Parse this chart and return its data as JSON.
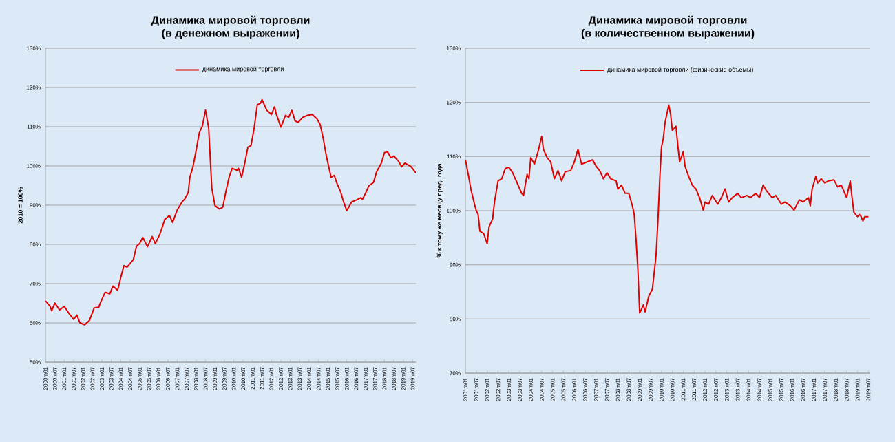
{
  "chart_data": [
    {
      "type": "line",
      "title": "Динамика мировой торговли",
      "subtitle": "(в денежном выражении)",
      "ylabel": "2010 = 100%",
      "grid": "y",
      "legend": "top",
      "marker": "none",
      "line_style": "solid",
      "xlim": [
        "2000-01",
        "2019-09"
      ],
      "ylim": [
        50,
        130
      ],
      "yticks": [
        {
          "value": 50,
          "label": "50%"
        },
        {
          "value": 60,
          "label": "60%"
        },
        {
          "value": 70,
          "label": "70%"
        },
        {
          "value": 80,
          "label": "80%"
        },
        {
          "value": 90,
          "label": "90%"
        },
        {
          "value": 100,
          "label": "100%"
        },
        {
          "value": 110,
          "label": "110%"
        },
        {
          "value": 120,
          "label": "120%"
        },
        {
          "value": 130,
          "label": "130%"
        }
      ],
      "xticks": [
        {
          "value": "2000-01",
          "label": "2000m01"
        },
        {
          "value": "2000-07",
          "label": "2000m07"
        },
        {
          "value": "2001-01",
          "label": "2001m01"
        },
        {
          "value": "2001-07",
          "label": "2001m07"
        },
        {
          "value": "2002-01",
          "label": "2002m01"
        },
        {
          "value": "2002-07",
          "label": "2002m07"
        },
        {
          "value": "2003-01",
          "label": "2003m01"
        },
        {
          "value": "2003-07",
          "label": "2003m07"
        },
        {
          "value": "2004-01",
          "label": "2004m01"
        },
        {
          "value": "2004-07",
          "label": "2004m07"
        },
        {
          "value": "2005-01",
          "label": "2005m01"
        },
        {
          "value": "2005-07",
          "label": "2005m07"
        },
        {
          "value": "2006-01",
          "label": "2006m01"
        },
        {
          "value": "2006-07",
          "label": "2006m07"
        },
        {
          "value": "2007-01",
          "label": "2007m01"
        },
        {
          "value": "2007-07",
          "label": "2007m07"
        },
        {
          "value": "2008-01",
          "label": "2008m01"
        },
        {
          "value": "2008-07",
          "label": "2008m07"
        },
        {
          "value": "2009-01",
          "label": "2009m01"
        },
        {
          "value": "2009-07",
          "label": "2009m07"
        },
        {
          "value": "2010-01",
          "label": "2010m01"
        },
        {
          "value": "2010-07",
          "label": "2010m07"
        },
        {
          "value": "2011-01",
          "label": "2011m01"
        },
        {
          "value": "2011-07",
          "label": "2011m07"
        },
        {
          "value": "2012-01",
          "label": "2012m01"
        },
        {
          "value": "2012-07",
          "label": "2012m07"
        },
        {
          "value": "2013-01",
          "label": "2013m01"
        },
        {
          "value": "2013-07",
          "label": "2013m07"
        },
        {
          "value": "2014-01",
          "label": "2014m01"
        },
        {
          "value": "2014-07",
          "label": "2014m07"
        },
        {
          "value": "2015-01",
          "label": "2015m01"
        },
        {
          "value": "2015-07",
          "label": "2015m07"
        },
        {
          "value": "2016-01",
          "label": "2016m01"
        },
        {
          "value": "2016-07",
          "label": "2016m07"
        },
        {
          "value": "2017-01",
          "label": "2017m01"
        },
        {
          "value": "2017-07",
          "label": "2017m07"
        },
        {
          "value": "2018-01",
          "label": "2018m01"
        },
        {
          "value": "2018-07",
          "label": "2018m07"
        },
        {
          "value": "2019-01",
          "label": "2019m01"
        },
        {
          "value": "2019-07",
          "label": "2019m07"
        }
      ],
      "series": [
        {
          "name": "динамика мировой торговли",
          "color": "#e00000",
          "x": [
            "2000-01",
            "2000-04",
            "2000-05",
            "2000-07",
            "2000-10",
            "2001-01",
            "2001-04",
            "2001-07",
            "2001-09",
            "2001-11",
            "2002-02",
            "2002-05",
            "2002-08",
            "2002-11",
            "2002-12",
            "2003-03",
            "2003-06",
            "2003-08",
            "2003-11",
            "2004-01",
            "2004-03",
            "2004-05",
            "2004-09",
            "2004-11",
            "2005-01",
            "2005-03",
            "2005-06",
            "2005-09",
            "2005-11",
            "2006-02",
            "2006-05",
            "2006-08",
            "2006-10",
            "2007-01",
            "2007-04",
            "2007-06",
            "2007-08",
            "2007-09",
            "2007-11",
            "2008-01",
            "2008-03",
            "2008-05",
            "2008-07",
            "2008-09",
            "2008-11",
            "2009-01",
            "2009-04",
            "2009-06",
            "2009-08",
            "2009-10",
            "2009-12",
            "2010-03",
            "2010-04",
            "2010-06",
            "2010-08",
            "2010-10",
            "2010-12",
            "2011-02",
            "2011-04",
            "2011-06",
            "2011-07",
            "2011-10",
            "2012-01",
            "2012-03",
            "2012-04",
            "2012-07",
            "2012-10",
            "2012-12",
            "2013-02",
            "2013-04",
            "2013-06",
            "2013-09",
            "2013-12",
            "2014-03",
            "2014-06",
            "2014-08",
            "2014-10",
            "2014-12",
            "2015-02",
            "2015-03",
            "2015-05",
            "2015-07",
            "2015-09",
            "2015-11",
            "2016-01",
            "2016-04",
            "2016-07",
            "2016-10",
            "2016-11",
            "2017-01",
            "2017-03",
            "2017-06",
            "2017-08",
            "2017-11",
            "2018-01",
            "2018-03",
            "2018-05",
            "2018-07",
            "2018-10",
            "2018-12",
            "2019-02",
            "2019-04",
            "2019-06",
            "2019-09"
          ],
          "values": [
            65.6,
            64.2,
            63.1,
            65.1,
            63.3,
            64.2,
            62.4,
            60.9,
            62,
            60,
            59.5,
            60.6,
            63.8,
            64,
            65.1,
            67.8,
            67.4,
            69.4,
            68.3,
            71.6,
            74.6,
            74.2,
            76.1,
            79.5,
            80.2,
            81.8,
            79.4,
            82,
            80.2,
            82.7,
            86.3,
            87.4,
            85.6,
            88.8,
            90.8,
            91.7,
            93.3,
            97.1,
            99.8,
            103.9,
            108.4,
            110.2,
            114.2,
            109.7,
            94.4,
            89.9,
            89,
            89.5,
            93.5,
            97.1,
            99.4,
            98.9,
            99.4,
            97.1,
            100.7,
            104.8,
            105.2,
            109.7,
            115.6,
            116,
            116.9,
            114.2,
            113.1,
            115.1,
            113.3,
            109.9,
            112.9,
            112.4,
            114.2,
            111.5,
            111.1,
            112.4,
            112.9,
            113.1,
            112,
            110.6,
            107,
            102.5,
            98.9,
            97.1,
            97.6,
            95.3,
            93.5,
            90.8,
            88.6,
            90.8,
            91.3,
            91.9,
            91.5,
            93.1,
            94.9,
            95.8,
            98.5,
            100.7,
            103.4,
            103.6,
            102.1,
            102.5,
            101.2,
            99.8,
            100.7,
            100.3,
            99.8,
            98.2
          ]
        }
      ]
    },
    {
      "type": "line",
      "title": "Динамика мировой торговли",
      "subtitle": "(в количественном выражении)",
      "ylabel": "% к тому же месяцу пред. года",
      "grid": "y",
      "legend": "top",
      "marker": "none",
      "line_style": "solid",
      "xlim": [
        "2001-01",
        "2019-08"
      ],
      "ylim": [
        70,
        130
      ],
      "yticks": [
        {
          "value": 70,
          "label": "70%"
        },
        {
          "value": 80,
          "label": "80%"
        },
        {
          "value": 90,
          "label": "90%"
        },
        {
          "value": 100,
          "label": "100%"
        },
        {
          "value": 110,
          "label": "110%"
        },
        {
          "value": 120,
          "label": "120%"
        },
        {
          "value": 130,
          "label": "130%"
        }
      ],
      "xticks": [
        {
          "value": "2001-01",
          "label": "2001m01"
        },
        {
          "value": "2001-07",
          "label": "2001m07"
        },
        {
          "value": "2002-01",
          "label": "2002m01"
        },
        {
          "value": "2002-07",
          "label": "2002m07"
        },
        {
          "value": "2003-01",
          "label": "2003m01"
        },
        {
          "value": "2003-07",
          "label": "2003m07"
        },
        {
          "value": "2004-01",
          "label": "2004m01"
        },
        {
          "value": "2004-07",
          "label": "2004m07"
        },
        {
          "value": "2005-01",
          "label": "2005m01"
        },
        {
          "value": "2005-07",
          "label": "2005m07"
        },
        {
          "value": "2006-01",
          "label": "2006m01"
        },
        {
          "value": "2006-07",
          "label": "2006m07"
        },
        {
          "value": "2007-01",
          "label": "2007m01"
        },
        {
          "value": "2007-07",
          "label": "2007m07"
        },
        {
          "value": "2008-01",
          "label": "2008m01"
        },
        {
          "value": "2008-07",
          "label": "2008m07"
        },
        {
          "value": "2009-01",
          "label": "2009m01"
        },
        {
          "value": "2009-07",
          "label": "2009m07"
        },
        {
          "value": "2010-01",
          "label": "2010m01"
        },
        {
          "value": "2010-07",
          "label": "2010m07"
        },
        {
          "value": "2011-01",
          "label": "2011m01"
        },
        {
          "value": "2011-07",
          "label": "2011m07"
        },
        {
          "value": "2012-01",
          "label": "2012m01"
        },
        {
          "value": "2012-07",
          "label": "2012m07"
        },
        {
          "value": "2013-01",
          "label": "2013m01"
        },
        {
          "value": "2013-07",
          "label": "2013m07"
        },
        {
          "value": "2014-01",
          "label": "2014m01"
        },
        {
          "value": "2014-07",
          "label": "2014m07"
        },
        {
          "value": "2015-01",
          "label": "2015m01"
        },
        {
          "value": "2015-07",
          "label": "2015m07"
        },
        {
          "value": "2016-01",
          "label": "2016m01"
        },
        {
          "value": "2016-07",
          "label": "2016m07"
        },
        {
          "value": "2017-01",
          "label": "2017m01"
        },
        {
          "value": "2017-07",
          "label": "2017m07"
        },
        {
          "value": "2018-01",
          "label": "2018m01"
        },
        {
          "value": "2018-07",
          "label": "2018m07"
        },
        {
          "value": "2019-01",
          "label": "2019m01"
        },
        {
          "value": "2019-07",
          "label": "2019m07"
        }
      ],
      "series": [
        {
          "name": "динамика мировой торговли (физические объемы)",
          "color": "#e00000",
          "x": [
            "2001-01",
            "2001-03",
            "2001-04",
            "2001-06",
            "2001-07",
            "2001-08",
            "2001-09",
            "2001-11",
            "2002-01",
            "2002-02",
            "2002-04",
            "2002-05",
            "2002-07",
            "2002-09",
            "2002-11",
            "2003-01",
            "2003-03",
            "2003-05",
            "2003-08",
            "2003-09",
            "2003-11",
            "2003-12",
            "2004-01",
            "2004-03",
            "2004-05",
            "2004-07",
            "2004-08",
            "2004-10",
            "2004-12",
            "2005-02",
            "2005-04",
            "2005-06",
            "2005-08",
            "2005-11",
            "2006-01",
            "2006-03",
            "2006-05",
            "2006-08",
            "2006-11",
            "2007-01",
            "2007-03",
            "2007-05",
            "2007-07",
            "2007-09",
            "2007-12",
            "2008-01",
            "2008-03",
            "2008-05",
            "2008-07",
            "2008-09",
            "2008-10",
            "2008-11",
            "2008-12",
            "2009-01",
            "2009-03",
            "2009-04",
            "2009-06",
            "2009-08",
            "2009-10",
            "2009-11",
            "2009-12",
            "2010-01",
            "2010-02",
            "2010-03",
            "2010-05",
            "2010-06",
            "2010-07",
            "2010-09",
            "2010-10",
            "2010-11",
            "2011-01",
            "2011-02",
            "2011-04",
            "2011-06",
            "2011-08",
            "2011-10",
            "2011-12",
            "2012-01",
            "2012-03",
            "2012-05",
            "2012-08",
            "2012-10",
            "2012-12",
            "2013-02",
            "2013-04",
            "2013-07",
            "2013-09",
            "2013-12",
            "2014-02",
            "2014-05",
            "2014-07",
            "2014-09",
            "2014-11",
            "2015-02",
            "2015-04",
            "2015-07",
            "2015-09",
            "2015-12",
            "2016-02",
            "2016-05",
            "2016-07",
            "2016-10",
            "2016-11",
            "2016-12",
            "2017-02",
            "2017-03",
            "2017-05",
            "2017-07",
            "2017-09",
            "2017-12",
            "2018-02",
            "2018-04",
            "2018-05",
            "2018-07",
            "2018-08",
            "2018-09",
            "2018-10",
            "2018-11",
            "2019-01",
            "2019-02",
            "2019-03",
            "2019-04",
            "2019-05",
            "2019-07"
          ],
          "values": [
            109.4,
            105.9,
            104,
            101.2,
            100,
            99.3,
            96.2,
            95.8,
            93.9,
            97,
            98.5,
            101.6,
            105.5,
            105.9,
            107.8,
            108,
            107,
            105.5,
            103.2,
            102.8,
            106.7,
            105.9,
            109.8,
            108.6,
            110.9,
            113.7,
            111.3,
            109.8,
            109,
            105.9,
            107.4,
            105.5,
            107.2,
            107.4,
            109,
            111.3,
            108.6,
            109,
            109.4,
            108.2,
            107.4,
            105.9,
            107,
            105.9,
            105.5,
            104,
            104.7,
            103.2,
            103.2,
            100.9,
            99.3,
            94.7,
            89.2,
            81.1,
            82.6,
            81.3,
            84.2,
            85.5,
            91.6,
            97.7,
            105.5,
            111.7,
            113.3,
            116.3,
            119.5,
            117.9,
            114.8,
            115.6,
            112.1,
            109,
            110.9,
            108.2,
            106.3,
            104.7,
            104,
            102.4,
            100.1,
            101.6,
            101.2,
            102.8,
            101.2,
            102.4,
            104,
            101.6,
            102.4,
            103.2,
            102.4,
            102.8,
            102.4,
            103.2,
            102.4,
            104.7,
            103.6,
            102.4,
            102.8,
            101.2,
            101.6,
            100.9,
            100.1,
            102,
            101.6,
            102.4,
            100.9,
            104,
            106.3,
            105.1,
            105.9,
            105.1,
            105.5,
            105.7,
            104.4,
            104.7,
            104,
            102.4,
            104,
            105.5,
            102.4,
            99.7,
            98.9,
            99.3,
            98.9,
            98.1,
            98.9,
            98.9
          ]
        }
      ]
    }
  ]
}
